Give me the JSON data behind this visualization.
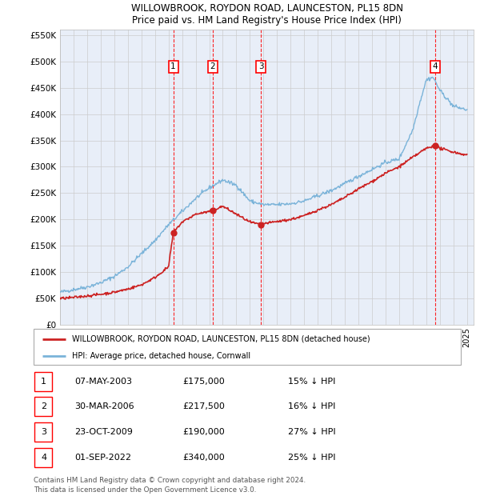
{
  "title1": "WILLOWBROOK, ROYDON ROAD, LAUNCESTON, PL15 8DN",
  "title2": "Price paid vs. HM Land Registry's House Price Index (HPI)",
  "plot_bg": "#e8eef8",
  "grid_color": "#cccccc",
  "sale_dates_num": [
    2003.35,
    2006.25,
    2009.81,
    2022.67
  ],
  "sale_prices": [
    175000,
    217500,
    190000,
    340000
  ],
  "sale_labels": [
    "1",
    "2",
    "3",
    "4"
  ],
  "legend_red": "WILLOWBROOK, ROYDON ROAD, LAUNCESTON, PL15 8DN (detached house)",
  "legend_blue": "HPI: Average price, detached house, Cornwall",
  "table_data": [
    [
      "1",
      "07-MAY-2003",
      "£175,000",
      "15% ↓ HPI"
    ],
    [
      "2",
      "30-MAR-2006",
      "£217,500",
      "16% ↓ HPI"
    ],
    [
      "3",
      "23-OCT-2009",
      "£190,000",
      "27% ↓ HPI"
    ],
    [
      "4",
      "01-SEP-2022",
      "£340,000",
      "25% ↓ HPI"
    ]
  ],
  "footer": "Contains HM Land Registry data © Crown copyright and database right 2024.\nThis data is licensed under the Open Government Licence v3.0.",
  "ylim": [
    0,
    560000
  ],
  "yticks": [
    0,
    50000,
    100000,
    150000,
    200000,
    250000,
    300000,
    350000,
    400000,
    450000,
    500000,
    550000
  ],
  "ytick_labels": [
    "£0",
    "£50K",
    "£100K",
    "£150K",
    "£200K",
    "£250K",
    "£300K",
    "£350K",
    "£400K",
    "£450K",
    "£500K",
    "£550K"
  ],
  "xlim_start": 1995.0,
  "xlim_end": 2025.5,
  "hpi_kx": [
    1995,
    1996,
    1997,
    1998,
    1999,
    2000,
    2001,
    2002,
    2003,
    2004,
    2005,
    2006,
    2007,
    2008,
    2009,
    2010,
    2011,
    2012,
    2013,
    2014,
    2015,
    2016,
    2017,
    2018,
    2019,
    2020,
    2021,
    2021.5,
    2022,
    2022.5,
    2023,
    2023.5,
    2024,
    2025
  ],
  "hpi_ky": [
    62000,
    67000,
    72000,
    80000,
    92000,
    110000,
    135000,
    160000,
    190000,
    215000,
    240000,
    260000,
    275000,
    265000,
    235000,
    228000,
    228000,
    230000,
    235000,
    245000,
    255000,
    268000,
    282000,
    295000,
    308000,
    315000,
    370000,
    420000,
    465000,
    470000,
    445000,
    430000,
    415000,
    408000
  ],
  "red_kx": [
    1995,
    1996,
    1997,
    1998,
    1999,
    2000,
    2001,
    2002,
    2003,
    2003.35,
    2004,
    2005,
    2006,
    2006.25,
    2007,
    2008,
    2009,
    2009.81,
    2010,
    2011,
    2012,
    2013,
    2014,
    2015,
    2016,
    2017,
    2018,
    2019,
    2020,
    2021,
    2022,
    2022.67,
    2023,
    2024,
    2025
  ],
  "red_ky": [
    50000,
    52000,
    55000,
    58000,
    62000,
    68000,
    76000,
    90000,
    110000,
    175000,
    195000,
    210000,
    215000,
    217500,
    225000,
    210000,
    195000,
    190000,
    192000,
    196000,
    200000,
    207000,
    218000,
    228000,
    242000,
    258000,
    272000,
    288000,
    300000,
    318000,
    335000,
    340000,
    335000,
    328000,
    322000
  ]
}
